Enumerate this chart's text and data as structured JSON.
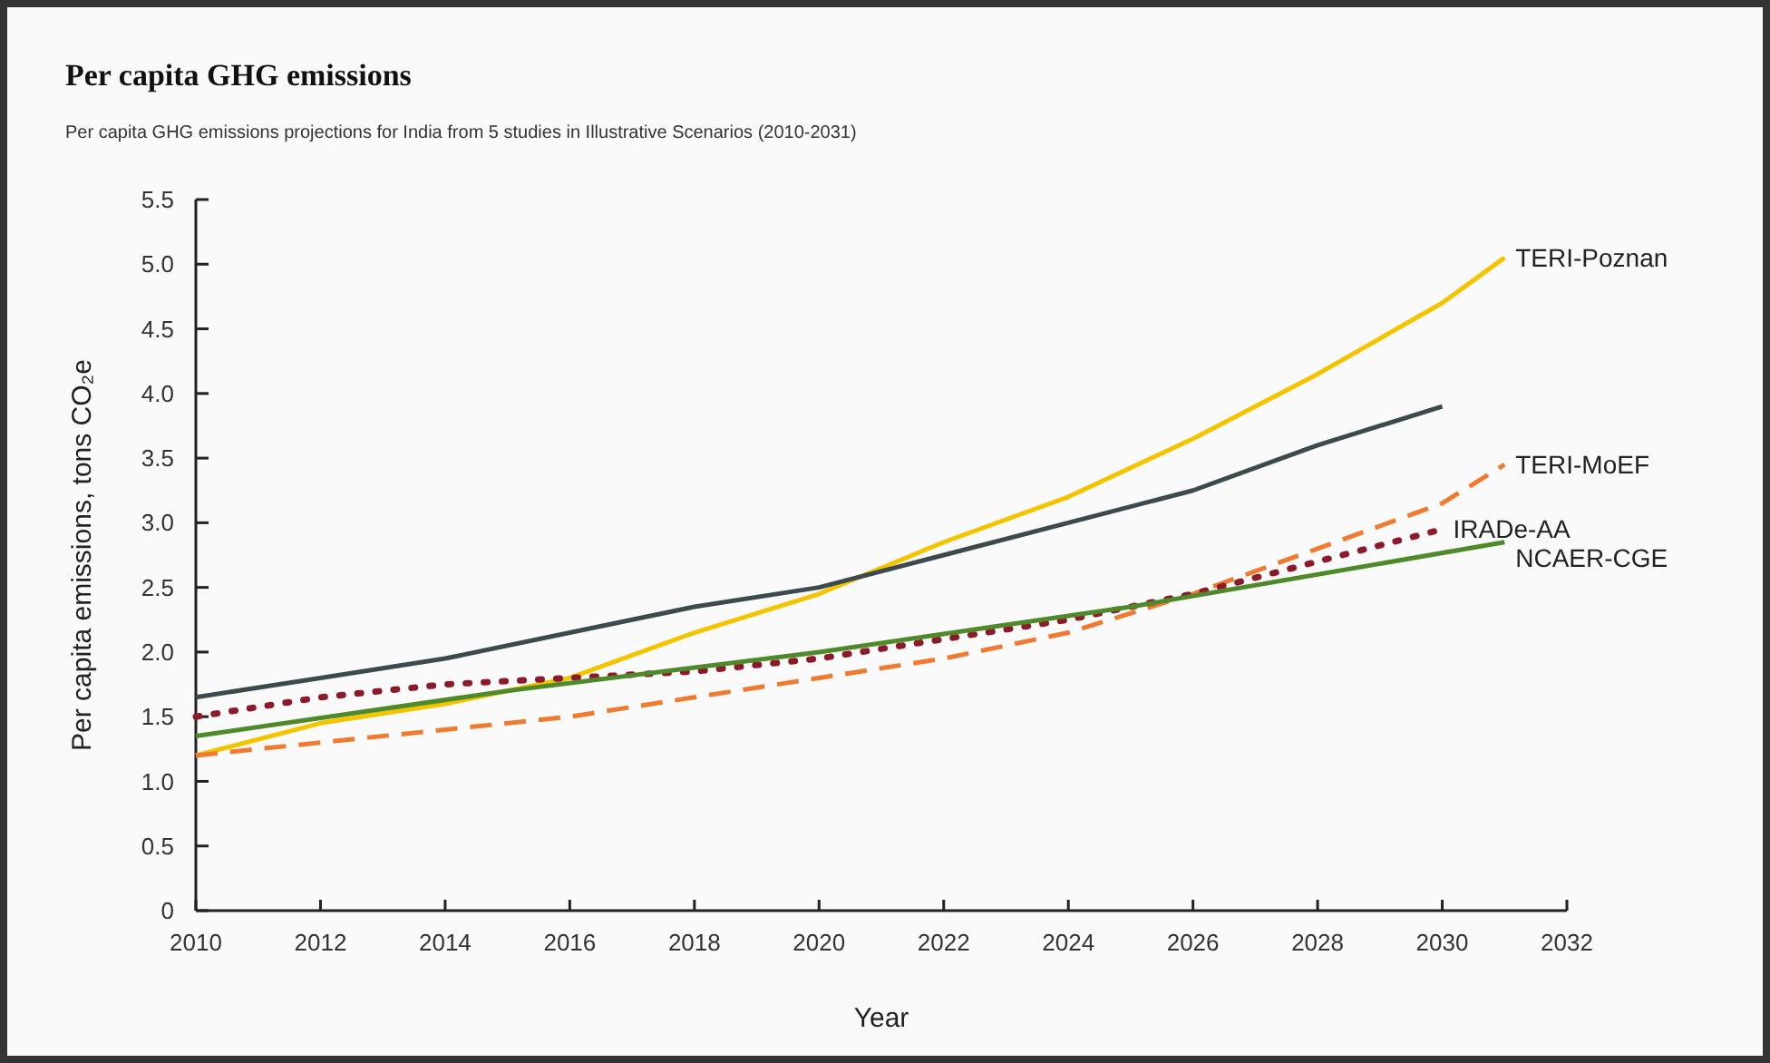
{
  "chart_data": {
    "type": "line",
    "title": "Per capita GHG emissions",
    "subtitle": "Per capita GHG emissions projections for India from 5 studies in Illustrative Scenarios (2010-2031)",
    "xlabel": "Year",
    "ylabel": "Per capita emissions, tons CO₂e",
    "xlim": [
      2010,
      2032
    ],
    "xticks": [
      2010,
      2012,
      2014,
      2016,
      2018,
      2020,
      2022,
      2024,
      2026,
      2028,
      2030,
      2032
    ],
    "ylim": [
      0,
      5.5
    ],
    "yticks": [
      0,
      {
        "value": 0.5,
        "label": "0.5"
      },
      {
        "value": 1,
        "label": "1.0"
      },
      1.5,
      {
        "value": 2,
        "label": "2.0"
      },
      2.5,
      {
        "value": 3,
        "label": "3.0"
      },
      3.5,
      {
        "value": 4,
        "label": "4.0"
      },
      4.5,
      {
        "value": 5,
        "label": "5.0"
      },
      5.5
    ],
    "grid": false,
    "legend": false,
    "series": [
      {
        "name": "TERI-Poznan",
        "color": "#f5c400",
        "line_style": "solid",
        "x": [
          2010,
          2012,
          2014,
          2016,
          2018,
          2020,
          2022,
          2024,
          2026,
          2028,
          2030,
          2031
        ],
        "values": [
          1.2,
          1.45,
          1.6,
          1.8,
          2.15,
          2.45,
          2.85,
          3.2,
          3.65,
          4.15,
          4.7,
          5.05
        ]
      },
      {
        "color": "#3c4a4e",
        "line_style": "solid",
        "x": [
          2010,
          2012,
          2014,
          2016,
          2018,
          2020,
          2022,
          2024,
          2026,
          2028,
          2030
        ],
        "values": [
          1.65,
          1.8,
          1.95,
          2.15,
          2.35,
          2.5,
          2.75,
          3.0,
          3.25,
          3.6,
          3.9
        ]
      },
      {
        "name": "TERI-MoEF",
        "color": "#f07a30",
        "line_style": "dashed",
        "x": [
          2010,
          2012,
          2014,
          2016,
          2018,
          2020,
          2022,
          2024,
          2026,
          2028,
          2030,
          2031
        ],
        "values": [
          1.2,
          1.3,
          1.4,
          1.5,
          1.65,
          1.8,
          1.95,
          2.15,
          2.45,
          2.8,
          3.15,
          3.45
        ]
      },
      {
        "name": "IRADe-AA",
        "color": "#8b1a2a",
        "line_style": "dotted",
        "x": [
          2010,
          2012,
          2014,
          2016,
          2018,
          2020,
          2022,
          2024,
          2026,
          2028,
          2030
        ],
        "values": [
          1.5,
          1.65,
          1.75,
          1.8,
          1.85,
          1.95,
          2.1,
          2.25,
          2.45,
          2.7,
          2.95
        ]
      },
      {
        "name": "NCAER-CGE",
        "color": "#4f8a2a",
        "line_style": "solid",
        "x": [
          2010,
          2015,
          2020,
          2025,
          2031
        ],
        "values": [
          1.35,
          1.7,
          2.0,
          2.35,
          2.85
        ]
      }
    ]
  }
}
